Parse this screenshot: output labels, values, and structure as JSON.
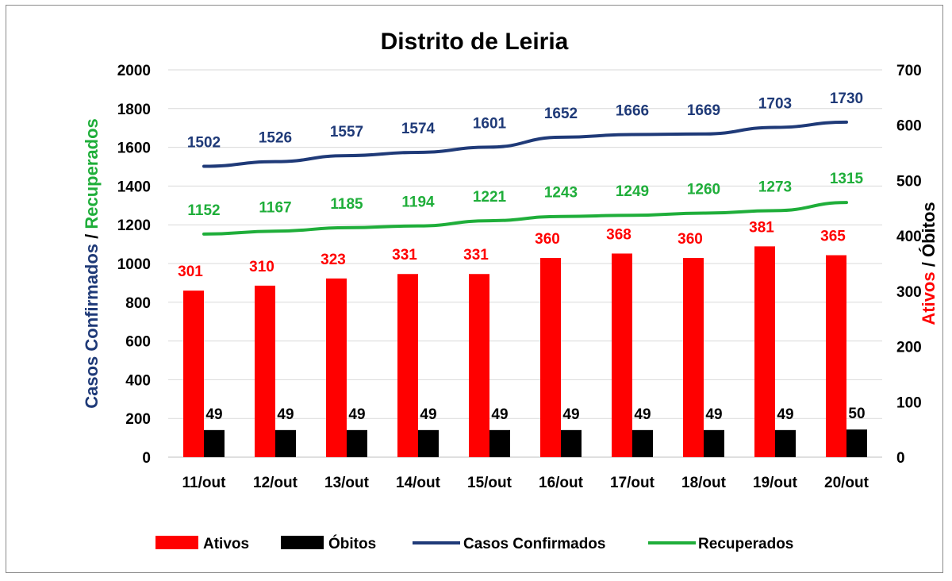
{
  "chart_data": {
    "type": "bar",
    "title": "Distrito de Leiria",
    "categories": [
      "11/out",
      "12/out",
      "13/out",
      "14/out",
      "15/out",
      "16/out",
      "17/out",
      "18/out",
      "19/out",
      "20/out"
    ],
    "left_axis": {
      "label_part1": "Casos Confirmados",
      "label_sep": " / ",
      "label_part2": "Recuperados",
      "ylim": [
        0,
        2000
      ],
      "ticks": [
        "0",
        "200",
        "400",
        "600",
        "800",
        "1000",
        "1200",
        "1400",
        "1600",
        "1800",
        "2000"
      ]
    },
    "right_axis": {
      "label_part1": "Ativos",
      "label_sep": " / ",
      "label_part2": "Óbitos",
      "ylim": [
        0,
        700
      ],
      "ticks": [
        "0",
        "100",
        "200",
        "300",
        "400",
        "500",
        "600",
        "700"
      ]
    },
    "series": [
      {
        "name": "Ativos",
        "kind": "bar",
        "axis": "right",
        "color": "#ff0000",
        "values": [
          301,
          310,
          323,
          331,
          331,
          360,
          368,
          360,
          381,
          365
        ]
      },
      {
        "name": "Óbitos",
        "kind": "bar",
        "axis": "right",
        "color": "#000000",
        "values": [
          49,
          49,
          49,
          49,
          49,
          49,
          49,
          49,
          49,
          50
        ]
      },
      {
        "name": "Casos Confirmados",
        "kind": "line",
        "axis": "left",
        "color": "#1f3a78",
        "values": [
          1502,
          1526,
          1557,
          1574,
          1601,
          1652,
          1666,
          1669,
          1703,
          1730
        ]
      },
      {
        "name": "Recuperados",
        "kind": "line",
        "axis": "left",
        "color": "#1fae3a",
        "values": [
          1152,
          1167,
          1185,
          1194,
          1221,
          1243,
          1249,
          1260,
          1273,
          1315
        ]
      }
    ],
    "legend_position": "bottom",
    "grid": true
  }
}
